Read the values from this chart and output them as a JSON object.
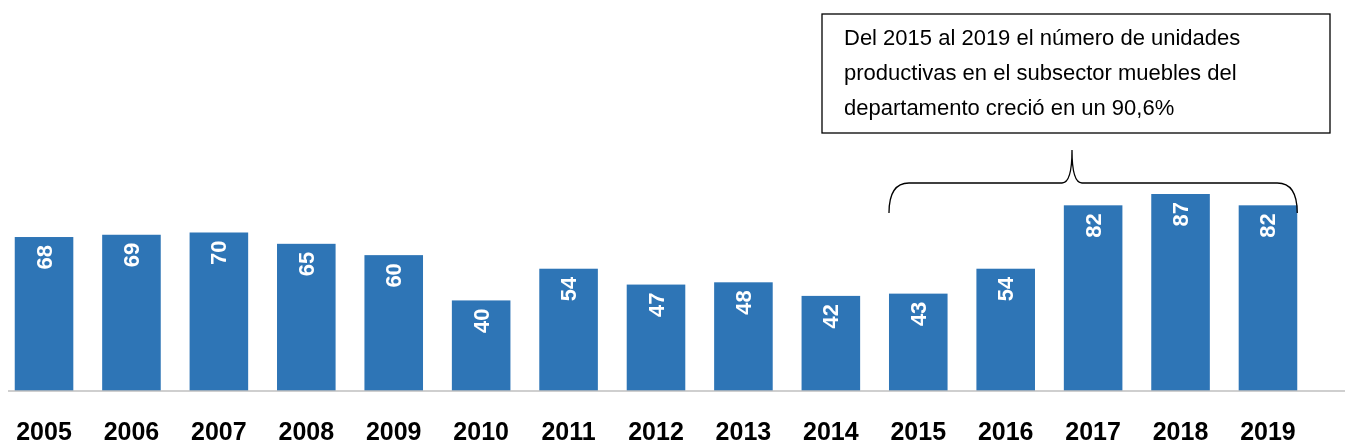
{
  "chart_data": {
    "type": "bar",
    "categories": [
      "2005",
      "2006",
      "2007",
      "2008",
      "2009",
      "2010",
      "2011",
      "2012",
      "2013",
      "2014",
      "2015",
      "2016",
      "2017",
      "2018",
      "2019"
    ],
    "values": [
      68,
      69,
      70,
      65,
      60,
      40,
      54,
      47,
      48,
      42,
      43,
      54,
      82,
      87,
      82
    ],
    "color": "#2e75b6",
    "data_labels": true,
    "annotations": [
      "Del 2015 al 2019 el número de unidades productivas en el subsector muebles del departamento creció en un 90,6%"
    ]
  }
}
